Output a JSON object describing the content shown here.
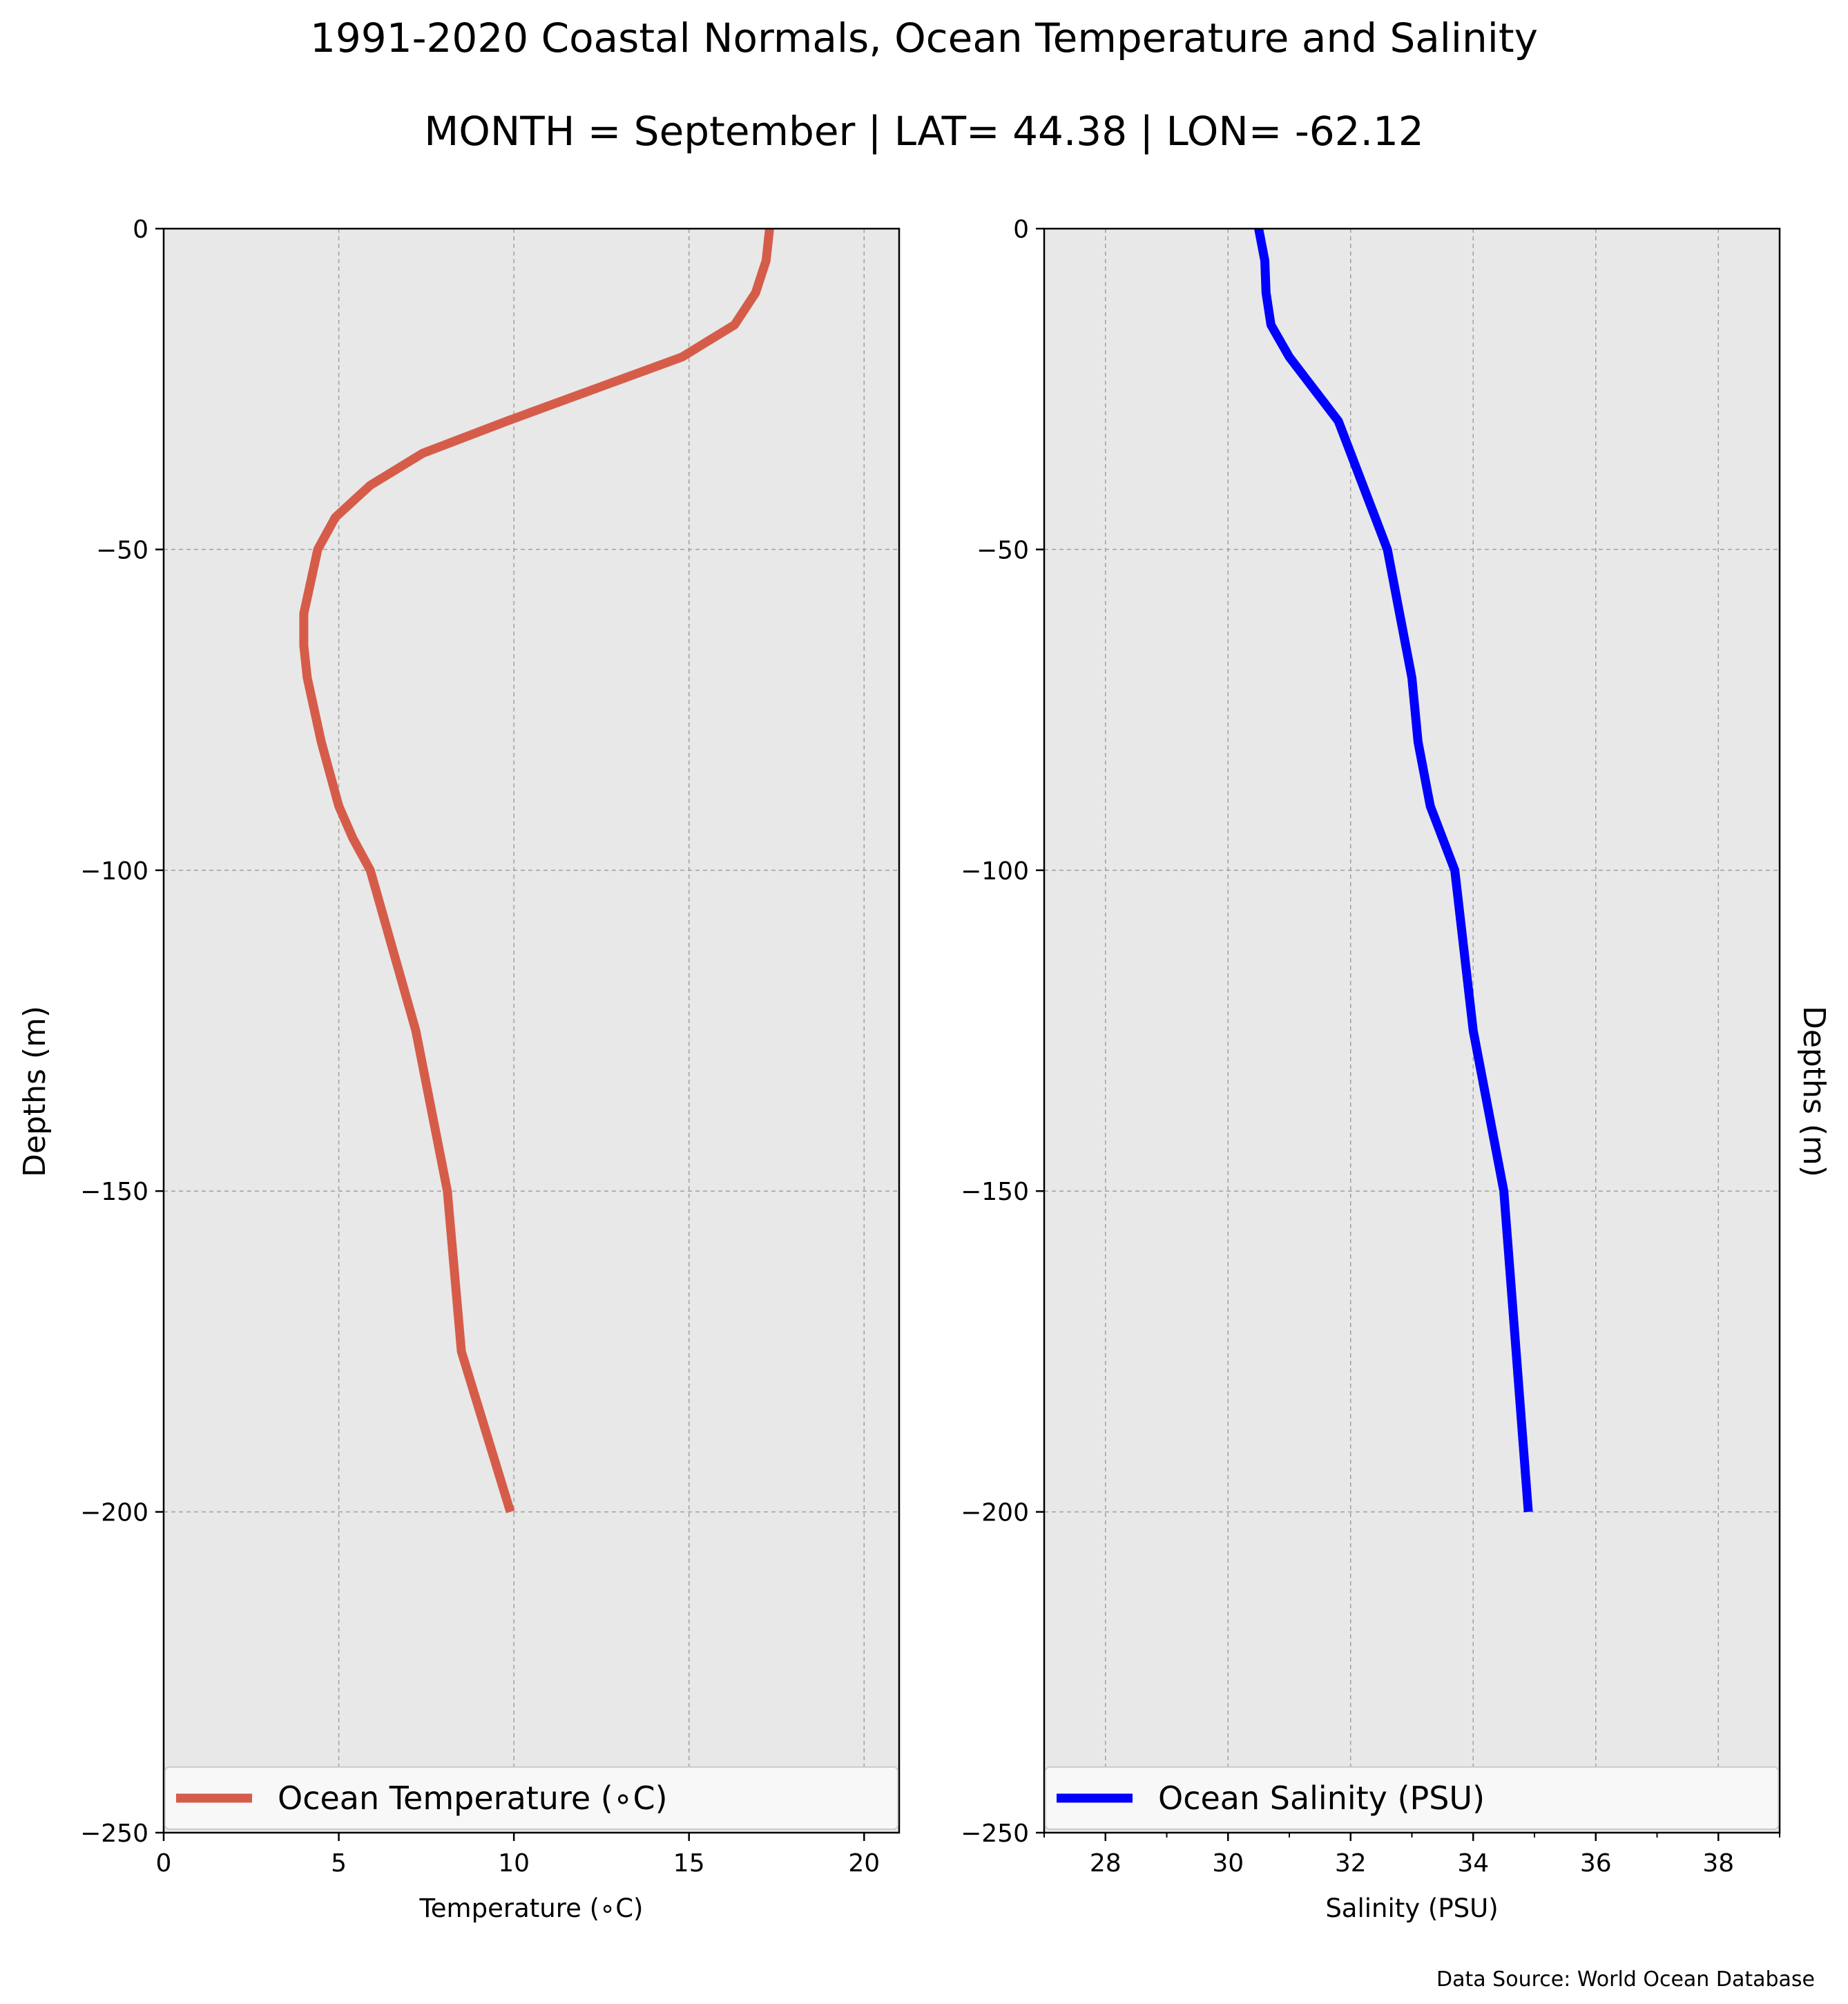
{
  "title": "1991-2020 Coastal Normals, Ocean Temperature and Salinity",
  "subtitle": "MONTH = September | LAT= 44.38 | LON= -62.12",
  "source": "Data Source: World Ocean Database",
  "colors": {
    "background": "#ffffff",
    "panel": "#e8e8e8",
    "grid": "#a0a0a0",
    "temperature": "#d65c4a",
    "salinity": "#0000ff"
  },
  "chart_data": [
    {
      "type": "line",
      "name": "temperature",
      "xlabel": "Temperature ($^\\circ$C)",
      "xlabel_display": "Temperature (∘C)",
      "ylabel": "Depths (m)",
      "xlim": [
        0,
        21
      ],
      "ylim": [
        -250,
        0
      ],
      "xticks": [
        0,
        5,
        10,
        15,
        20
      ],
      "xtick_labels": [
        "0",
        "5",
        "10",
        "15",
        "20"
      ],
      "yticks": [
        0,
        -50,
        -100,
        -150,
        -200,
        -250
      ],
      "ytick_labels": [
        "0",
        "−50",
        "−100",
        "−150",
        "−200",
        "−250"
      ],
      "grid": true,
      "legend_loc": "lower center",
      "series": [
        {
          "name": "Ocean Temperature (∘C)",
          "color": "#d65c4a",
          "x": [
            17.3,
            17.2,
            16.9,
            16.3,
            14.8,
            12.3,
            9.8,
            7.4,
            5.9,
            4.9,
            4.4,
            4.0,
            4.0,
            4.1,
            4.3,
            4.5,
            5.0,
            5.4,
            5.9,
            7.2,
            8.1,
            8.5,
            9.9
          ],
          "y": [
            0,
            -5,
            -10,
            -15,
            -20,
            -25,
            -30,
            -35,
            -40,
            -45,
            -50,
            -60,
            -65,
            -70,
            -75,
            -80,
            -90,
            -95,
            -100,
            -125,
            -150,
            -175,
            -200
          ]
        }
      ]
    },
    {
      "type": "line",
      "name": "salinity",
      "xlabel": "Salinity (PSU)",
      "ylabel": "Depths (m)",
      "xlim": [
        27,
        39
      ],
      "ylim": [
        -250,
        0
      ],
      "xticks": [
        28,
        30,
        32,
        34,
        36,
        38
      ],
      "xtick_labels": [
        "28",
        "30",
        "32",
        "34",
        "36",
        "38"
      ],
      "yticks": [
        0,
        -50,
        -100,
        -150,
        -200,
        -250
      ],
      "ytick_labels": [
        "0",
        "−50",
        "−100",
        "−150",
        "−200",
        "−250"
      ],
      "grid": true,
      "legend_loc": "lower center",
      "series": [
        {
          "name": "Ocean Salinity (PSU)",
          "color": "#0000ff",
          "x": [
            30.5,
            30.6,
            30.62,
            30.7,
            31.0,
            31.4,
            31.8,
            32.0,
            32.2,
            32.4,
            32.6,
            32.8,
            33.0,
            33.1,
            33.3,
            33.5,
            33.7,
            34.0,
            34.5,
            34.7,
            34.9
          ],
          "y": [
            0,
            -5,
            -10,
            -15,
            -20,
            -25,
            -30,
            -35,
            -40,
            -45,
            -50,
            -60,
            -70,
            -80,
            -90,
            -95,
            -100,
            -125,
            -150,
            -175,
            -200
          ]
        }
      ]
    }
  ]
}
